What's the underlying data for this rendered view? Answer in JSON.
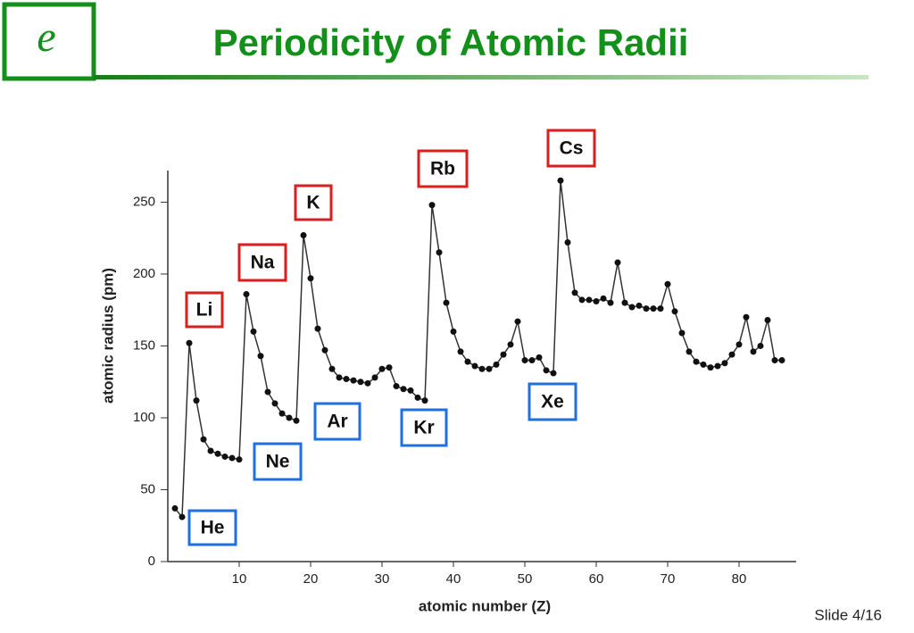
{
  "logo": "e",
  "slide_number": "Slide 4/16",
  "chart_data": {
    "type": "line",
    "title": "Periodicity of Atomic Radii",
    "x_label": "atomic number (Z)",
    "y_label": "atomic radius (pm)",
    "x": [
      1,
      2,
      3,
      4,
      5,
      6,
      7,
      8,
      9,
      10,
      11,
      12,
      13,
      14,
      15,
      16,
      17,
      18,
      19,
      20,
      21,
      22,
      23,
      24,
      25,
      26,
      27,
      28,
      29,
      30,
      31,
      32,
      33,
      34,
      35,
      36,
      37,
      38,
      39,
      40,
      41,
      42,
      43,
      44,
      45,
      46,
      47,
      48,
      49,
      50,
      51,
      52,
      53,
      54,
      55,
      56,
      57,
      58,
      59,
      60,
      61,
      62,
      63,
      64,
      65,
      66,
      67,
      68,
      69,
      70,
      71,
      72,
      73,
      74,
      75,
      76,
      77,
      78,
      79,
      80,
      81,
      82,
      83,
      84,
      85,
      86
    ],
    "values": [
      37,
      31,
      152,
      112,
      85,
      77,
      75,
      73,
      72,
      71,
      186,
      160,
      143,
      118,
      110,
      103,
      100,
      98,
      227,
      197,
      162,
      147,
      134,
      128,
      127,
      126,
      125,
      124,
      128,
      134,
      135,
      122,
      120,
      119,
      114,
      112,
      248,
      215,
      180,
      160,
      146,
      139,
      136,
      134,
      134,
      137,
      144,
      151,
      167,
      140,
      140,
      142,
      133,
      131,
      265,
      222,
      187,
      182,
      182,
      181,
      183,
      180,
      208,
      180,
      177,
      178,
      176,
      176,
      176,
      193,
      174,
      159,
      146,
      139,
      137,
      135,
      136,
      138,
      144,
      151,
      170,
      146,
      150,
      168,
      140,
      140
    ],
    "color": "#333333",
    "xlim": [
      0,
      88
    ],
    "ylim": [
      0,
      272
    ],
    "xticks": [
      10,
      20,
      30,
      40,
      50,
      60,
      70,
      80
    ],
    "yticks": [
      0,
      50,
      100,
      150,
      200,
      250
    ],
    "annotations": [
      {
        "text": "Li",
        "color": "#d81e1e"
      },
      {
        "text": "Na",
        "color": "#d81e1e"
      },
      {
        "text": "K",
        "color": "#d81e1e"
      },
      {
        "text": "Rb",
        "color": "#d81e1e"
      },
      {
        "text": "Cs",
        "color": "#d81e1e"
      },
      {
        "text": "He",
        "color": "#1f6fe0"
      },
      {
        "text": "Ne",
        "color": "#1f6fe0"
      },
      {
        "text": "Ar",
        "color": "#1f6fe0"
      },
      {
        "text": "Kr",
        "color": "#1f6fe0"
      },
      {
        "text": "Xe",
        "color": "#1f6fe0"
      }
    ]
  }
}
